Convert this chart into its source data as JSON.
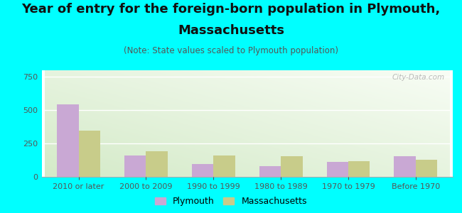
{
  "title_line1": "Year of entry for the foreign-born population in Plymouth,",
  "title_line2": "Massachusetts",
  "subtitle": "(Note: State values scaled to Plymouth population)",
  "categories": [
    "2010 or later",
    "2000 to 2009",
    "1990 to 1999",
    "1980 to 1989",
    "1970 to 1979",
    "Before 1970"
  ],
  "plymouth_values": [
    545,
    160,
    95,
    80,
    110,
    155
  ],
  "massachusetts_values": [
    345,
    190,
    160,
    155,
    115,
    130
  ],
  "plymouth_color": "#c9a8d4",
  "massachusetts_color": "#c8cc8a",
  "background_color": "#00ffff",
  "ylim": [
    0,
    800
  ],
  "yticks": [
    0,
    250,
    500,
    750
  ],
  "title_fontsize": 13,
  "subtitle_fontsize": 8.5,
  "tick_fontsize": 8,
  "legend_fontsize": 9,
  "watermark": "City-Data.com"
}
